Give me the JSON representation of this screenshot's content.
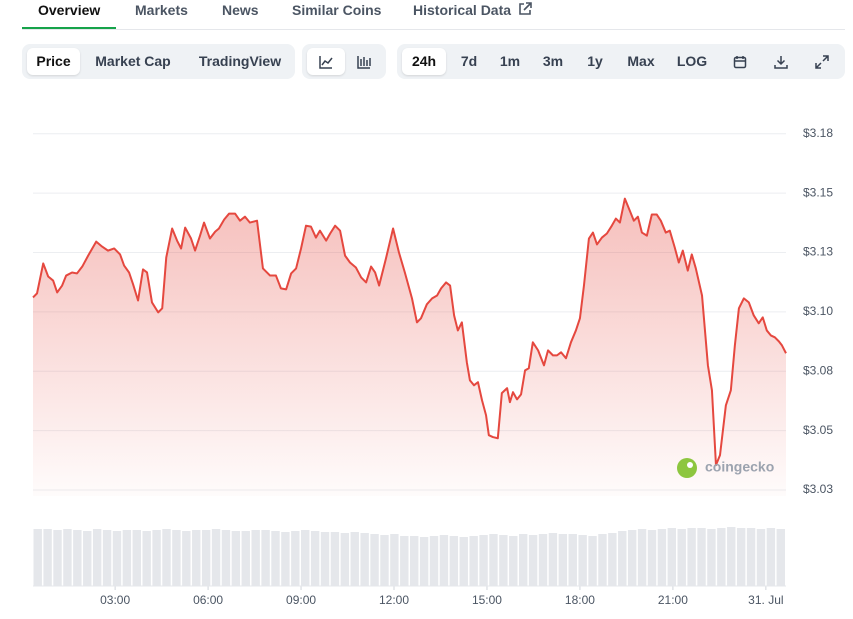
{
  "ui": {
    "tabs": [
      "Overview",
      "Markets",
      "News",
      "Similar Coins",
      "Historical Data"
    ],
    "view_buttons": [
      "Price",
      "Market Cap",
      "TradingView"
    ],
    "range_buttons": [
      "24h",
      "7d",
      "1m",
      "3m",
      "1y",
      "Max",
      "LOG"
    ],
    "watermark": "coingecko"
  },
  "chart_data": {
    "type": "line",
    "color": "#e5483f",
    "x": [
      0.35,
      0.48,
      0.68,
      0.84,
      1.0,
      1.13,
      1.29,
      1.42,
      1.61,
      1.77,
      1.94,
      2.13,
      2.39,
      2.58,
      2.77,
      2.97,
      3.16,
      3.29,
      3.45,
      3.58,
      3.74,
      3.9,
      4.03,
      4.19,
      4.39,
      4.52,
      4.65,
      4.84,
      5.0,
      5.13,
      5.26,
      5.45,
      5.58,
      5.74,
      5.87,
      6.06,
      6.23,
      6.35,
      6.52,
      6.68,
      6.87,
      7.03,
      7.19,
      7.35,
      7.58,
      7.77,
      8.0,
      8.19,
      8.35,
      8.52,
      8.68,
      8.84,
      9.0,
      9.16,
      9.32,
      9.48,
      9.61,
      9.81,
      9.94,
      10.1,
      10.26,
      10.42,
      10.58,
      10.77,
      10.94,
      11.1,
      11.26,
      11.39,
      11.52,
      11.74,
      11.97,
      12.16,
      12.35,
      12.58,
      12.74,
      12.87,
      13.06,
      13.23,
      13.39,
      13.52,
      13.68,
      13.81,
      13.94,
      14.06,
      14.19,
      14.35,
      14.45,
      14.58,
      14.71,
      14.84,
      14.97,
      15.06,
      15.19,
      15.35,
      15.48,
      15.65,
      15.74,
      15.84,
      15.97,
      16.1,
      16.23,
      16.35,
      16.48,
      16.65,
      16.84,
      16.97,
      17.13,
      17.26,
      17.39,
      17.55,
      17.71,
      17.87,
      18.0,
      18.13,
      18.29,
      18.42,
      18.55,
      18.71,
      18.87,
      19.03,
      19.16,
      19.29,
      19.45,
      19.61,
      19.74,
      19.87,
      20.0,
      20.16,
      20.32,
      20.48,
      20.61,
      20.77,
      20.9,
      21.06,
      21.19,
      21.32,
      21.48,
      21.61,
      21.74,
      21.94,
      22.13,
      22.26,
      22.39,
      22.52,
      22.71,
      22.87,
      23.0,
      23.13,
      23.29,
      23.45,
      23.61,
      23.77,
      23.9,
      24.03,
      24.16,
      24.29,
      24.42,
      24.52,
      24.65
    ],
    "values": [
      3.1061,
      3.1078,
      3.1204,
      3.1149,
      3.1132,
      3.1082,
      3.1111,
      3.1153,
      3.1166,
      3.1162,
      3.1191,
      3.1237,
      3.1296,
      3.1275,
      3.1258,
      3.1267,
      3.1242,
      3.1195,
      3.1166,
      3.1116,
      3.1048,
      3.1179,
      3.1166,
      3.104,
      3.0998,
      3.1015,
      3.1229,
      3.1351,
      3.13,
      3.1267,
      3.1355,
      3.1309,
      3.1258,
      3.1321,
      3.1376,
      3.1309,
      3.1338,
      3.1351,
      3.1389,
      3.1414,
      3.1414,
      3.1384,
      3.1401,
      3.1376,
      3.1384,
      3.1183,
      3.1153,
      3.1153,
      3.1099,
      3.1095,
      3.1162,
      3.1183,
      3.1267,
      3.1363,
      3.1359,
      3.1313,
      3.1342,
      3.13,
      3.133,
      3.1363,
      3.1342,
      3.1237,
      3.1208,
      3.1187,
      3.1145,
      3.1124,
      3.1191,
      3.1166,
      3.1111,
      3.1225,
      3.1351,
      3.125,
      3.1166,
      3.1057,
      3.0956,
      3.0973,
      3.1032,
      3.1057,
      3.1069,
      3.1099,
      3.1124,
      3.1111,
      3.0985,
      3.0922,
      3.0956,
      3.0788,
      3.0712,
      3.0691,
      3.0704,
      3.0628,
      3.0565,
      3.0481,
      3.0473,
      3.0468,
      3.0658,
      3.0679,
      3.062,
      3.0662,
      3.0632,
      3.0653,
      3.0754,
      3.0763,
      3.0872,
      3.0838,
      3.0775,
      3.0838,
      3.0817,
      3.0817,
      3.083,
      3.0805,
      3.0872,
      3.0922,
      3.0973,
      3.1111,
      3.1309,
      3.1334,
      3.1284,
      3.1313,
      3.133,
      3.1363,
      3.1393,
      3.1376,
      3.1477,
      3.1426,
      3.1384,
      3.1401,
      3.1334,
      3.1321,
      3.141,
      3.141,
      3.1384,
      3.1334,
      3.1342,
      3.1271,
      3.1208,
      3.1258,
      3.1174,
      3.1242,
      3.1183,
      3.1069,
      3.0775,
      3.067,
      3.0355,
      3.0397,
      3.0607,
      3.067,
      3.0859,
      3.1015,
      3.1057,
      3.104,
      3.0985,
      3.0952,
      3.0977,
      3.0922,
      3.0901,
      3.0893,
      3.0876,
      3.0859,
      3.0826
    ],
    "xlim": [
      0.35,
      24.65
    ],
    "ylim": [
      3.0225,
      3.185
    ],
    "xticks": [
      {
        "value": 3,
        "label": "03:00"
      },
      {
        "value": 6,
        "label": "06:00"
      },
      {
        "value": 9,
        "label": "09:00"
      },
      {
        "value": 12,
        "label": "12:00"
      },
      {
        "value": 15,
        "label": "15:00"
      },
      {
        "value": 18,
        "label": "18:00"
      },
      {
        "value": 21,
        "label": "21:00"
      },
      {
        "value": 24,
        "label": "31. Jul"
      }
    ],
    "yticks": [
      {
        "value": 3.025,
        "label": "$3.03"
      },
      {
        "value": 3.05,
        "label": "$3.05"
      },
      {
        "value": 3.075,
        "label": "$3.08"
      },
      {
        "value": 3.1,
        "label": "$3.10"
      },
      {
        "value": 3.125,
        "label": "$3.13"
      },
      {
        "value": 3.15,
        "label": "$3.15"
      },
      {
        "value": 3.175,
        "label": "$3.18"
      }
    ],
    "grid": true,
    "volume": {
      "color": "#e5e7eb",
      "ylim": [
        0,
        60
      ],
      "values": [
        57,
        57,
        56,
        57,
        56,
        55,
        57,
        56,
        55,
        56,
        56,
        55,
        56,
        57,
        56,
        55,
        56,
        56,
        57,
        56,
        55,
        55,
        56,
        56,
        55,
        54,
        55,
        56,
        55,
        54,
        54,
        53,
        54,
        53,
        52,
        51,
        52,
        50,
        50,
        49,
        50,
        51,
        50,
        49,
        50,
        51,
        52,
        51,
        50,
        52,
        51,
        52,
        53,
        52,
        52,
        51,
        50,
        52,
        53,
        55,
        56,
        57,
        56,
        57,
        58,
        57,
        58,
        58,
        57,
        58,
        59,
        58,
        58,
        57,
        58,
        57
      ]
    }
  }
}
